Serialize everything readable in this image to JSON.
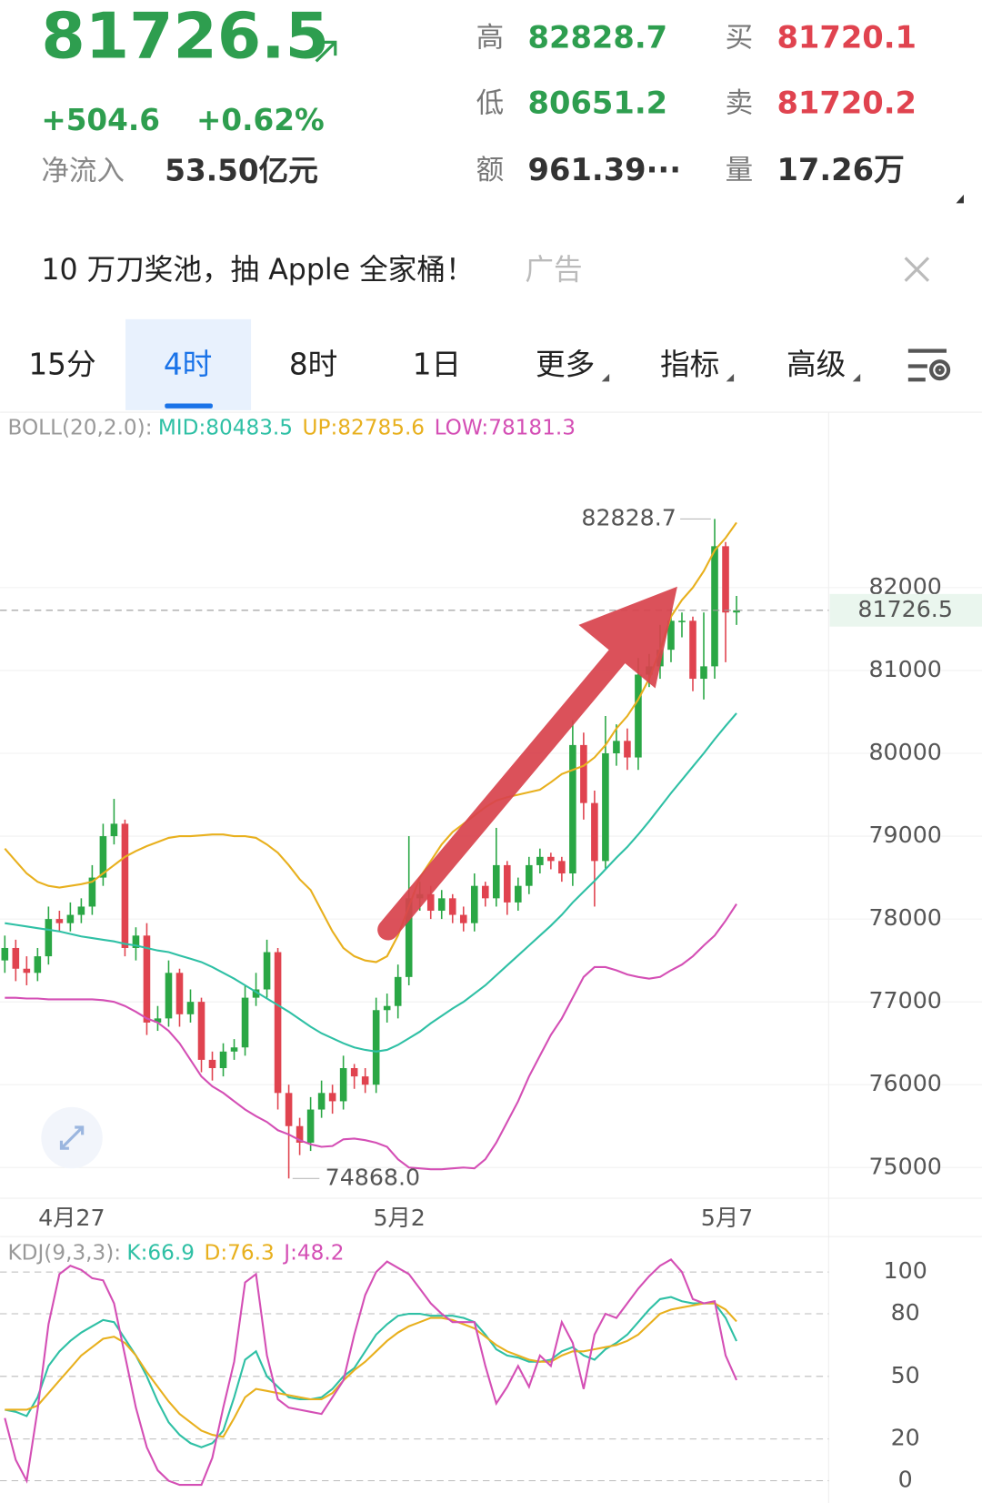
{
  "header": {
    "price": "81726.5",
    "change": "+504.6",
    "change_pct": "+0.62%",
    "inflow_label": "净流入",
    "inflow": "53.50亿元",
    "stats": [
      {
        "label": "高",
        "value": "82828.7",
        "color": "#2e9e4f"
      },
      {
        "label": "低",
        "value": "80651.2",
        "color": "#2e9e4f"
      },
      {
        "label": "额",
        "value": "961.39···",
        "color": "#333333"
      },
      {
        "label": "买",
        "value": "81720.1",
        "color": "#e0434f"
      },
      {
        "label": "卖",
        "value": "81720.2",
        "color": "#e0434f"
      },
      {
        "label": "量",
        "value": "17.26万",
        "color": "#333333"
      }
    ]
  },
  "ad": {
    "text": "10 万刀奖池，抽 Apple 全家桶！",
    "tag": "广告"
  },
  "tabs": [
    "15分",
    "4时",
    "8时",
    "1日",
    "更多",
    "指标",
    "高级"
  ],
  "selected_tab": 1,
  "chart_data": [
    {
      "type": "candlestick",
      "indicator_label": "BOLL(20,2.0):",
      "categories": [
        null,
        null,
        null,
        null,
        null,
        null,
        null,
        "4月27",
        null,
        null,
        null,
        null,
        null,
        null,
        null,
        null,
        null,
        null,
        null,
        null,
        null,
        null,
        null,
        null,
        null,
        null,
        null,
        null,
        null,
        null,
        null,
        null,
        null,
        null,
        null,
        null,
        null,
        "5月2",
        null,
        null,
        null,
        null,
        null,
        null,
        null,
        null,
        null,
        null,
        null,
        null,
        null,
        null,
        null,
        null,
        null,
        null,
        null,
        null,
        null,
        null,
        null,
        null,
        null,
        null,
        null,
        null,
        null,
        "5月7"
      ],
      "open": [
        77500,
        77650,
        77400,
        77350,
        77550,
        78000,
        77950,
        78050,
        78150,
        78500,
        79000,
        79150,
        77650,
        77800,
        76750,
        76800,
        77350,
        76850,
        77000,
        76300,
        76200,
        76400,
        76450,
        77050,
        77150,
        77600,
        75900,
        75500,
        75300,
        75700,
        75900,
        75800,
        76200,
        76100,
        76000,
        76900,
        76950,
        77300,
        78250,
        78300,
        78100,
        78250,
        78050,
        77950,
        78400,
        78250,
        78650,
        78200,
        78400,
        78650,
        78750,
        78700,
        78550,
        80100,
        79400,
        78700,
        80000,
        80150,
        79950,
        80950,
        81050,
        81250,
        81600,
        81600,
        80900,
        81050,
        82500,
        81700
      ],
      "high": [
        77800,
        77750,
        77550,
        77650,
        78150,
        78100,
        78200,
        78250,
        78650,
        79150,
        79450,
        79200,
        77900,
        77950,
        76950,
        77500,
        77400,
        77150,
        77050,
        76400,
        76500,
        76550,
        77200,
        77350,
        77750,
        77650,
        76000,
        75600,
        75850,
        76050,
        76000,
        76350,
        76250,
        76200,
        77050,
        77100,
        77450,
        79000,
        78450,
        78400,
        78350,
        78300,
        78150,
        78550,
        78450,
        79100,
        78700,
        78500,
        78750,
        78850,
        78800,
        78750,
        80400,
        80250,
        79550,
        80450,
        80350,
        80300,
        81150,
        81200,
        81550,
        81750,
        81700,
        81650,
        81700,
        82828.7,
        82550,
        81900
      ],
      "low": [
        77350,
        77250,
        77200,
        77250,
        77450,
        77850,
        77850,
        77950,
        78050,
        78400,
        78900,
        77550,
        77500,
        76600,
        76650,
        76700,
        76700,
        76750,
        76150,
        76050,
        76100,
        76300,
        76350,
        76950,
        77050,
        75700,
        74868,
        75150,
        75200,
        75600,
        75650,
        75700,
        75950,
        75900,
        75900,
        76750,
        76800,
        77200,
        78100,
        78000,
        78000,
        77950,
        77850,
        77850,
        78150,
        78150,
        78050,
        78100,
        78300,
        78550,
        78600,
        78450,
        78400,
        79200,
        78150,
        78600,
        79850,
        79800,
        79800,
        80800,
        80900,
        81100,
        81400,
        80750,
        80650,
        80900,
        81100,
        81550
      ],
      "close": [
        77650,
        77400,
        77350,
        77550,
        78000,
        77950,
        78050,
        78150,
        78500,
        79000,
        79150,
        77650,
        77800,
        76750,
        76800,
        77350,
        76850,
        77000,
        76300,
        76200,
        76400,
        76450,
        77050,
        77150,
        77600,
        75900,
        75500,
        75300,
        75700,
        75900,
        75800,
        76200,
        76100,
        76000,
        76900,
        76950,
        77300,
        78250,
        78300,
        78100,
        78250,
        78050,
        77950,
        78400,
        78250,
        78650,
        78200,
        78400,
        78650,
        78750,
        78700,
        78550,
        80100,
        79400,
        78700,
        80000,
        80150,
        79950,
        80950,
        81050,
        81250,
        81600,
        81600,
        80900,
        81050,
        82500,
        81700,
        81726.5
      ],
      "up_color": "#2aa745",
      "down_color": "#e0434f",
      "series": [
        {
          "name": "MID:80483.5",
          "color": "#2fc0a5",
          "values": [
            77950,
            77930,
            77910,
            77890,
            77870,
            77850,
            77820,
            77790,
            77770,
            77750,
            77730,
            77700,
            77680,
            77650,
            77620,
            77600,
            77560,
            77520,
            77480,
            77420,
            77350,
            77280,
            77200,
            77120,
            77040,
            76960,
            76880,
            76790,
            76700,
            76620,
            76560,
            76500,
            76450,
            76420,
            76400,
            76420,
            76480,
            76560,
            76640,
            76740,
            76830,
            76920,
            77000,
            77100,
            77200,
            77320,
            77440,
            77560,
            77680,
            77800,
            77920,
            78050,
            78200,
            78330,
            78460,
            78600,
            78740,
            78870,
            79020,
            79180,
            79350,
            79520,
            79680,
            79840,
            80000,
            80170,
            80330,
            80483.5
          ]
        },
        {
          "name": "UP:82785.6",
          "color": "#e8b01e",
          "values": [
            78850,
            78700,
            78550,
            78450,
            78400,
            78380,
            78400,
            78420,
            78450,
            78550,
            78650,
            78750,
            78820,
            78880,
            78930,
            78980,
            79000,
            79000,
            79010,
            79020,
            79020,
            79000,
            79000,
            78980,
            78900,
            78800,
            78650,
            78480,
            78350,
            78100,
            77850,
            77650,
            77550,
            77500,
            77480,
            77550,
            77800,
            78150,
            78500,
            78700,
            78900,
            79050,
            79150,
            79250,
            79350,
            79430,
            79470,
            79500,
            79530,
            79560,
            79650,
            79750,
            79800,
            79850,
            79950,
            80100,
            80300,
            80450,
            80650,
            80900,
            81250,
            81650,
            81850,
            82000,
            82200,
            82450,
            82600,
            82785.6
          ]
        },
        {
          "name": "LOW:78181.3",
          "color": "#d44fb5",
          "values": [
            77050,
            77050,
            77040,
            77040,
            77030,
            77030,
            77030,
            77030,
            77030,
            77020,
            77000,
            76950,
            76880,
            76800,
            76750,
            76650,
            76500,
            76300,
            76100,
            75980,
            75900,
            75800,
            75700,
            75620,
            75550,
            75450,
            75400,
            75330,
            75280,
            75250,
            75260,
            75340,
            75350,
            75330,
            75300,
            75250,
            75100,
            75000,
            74990,
            74980,
            74980,
            74990,
            75000,
            74990,
            75100,
            75300,
            75550,
            75800,
            76100,
            76350,
            76600,
            76800,
            77050,
            77300,
            77420,
            77420,
            77380,
            77330,
            77300,
            77280,
            77300,
            77380,
            77450,
            77550,
            77680,
            77800,
            77980,
            78181.3
          ]
        }
      ],
      "ylim": [
        74630,
        84118
      ],
      "yticks": [
        75000,
        76000,
        77000,
        78000,
        79000,
        80000,
        81000,
        82000
      ],
      "grid": true,
      "max_label": 82828.7,
      "min_label": {
        "value": 74868,
        "label": "74868.0"
      },
      "last_price": 81726.5
    },
    {
      "type": "line",
      "indicator_label": "KDJ(9,3,3):",
      "series": [
        {
          "name": "K:66.9",
          "color": "#2fc0a5",
          "values": [
            34,
            33,
            31,
            40,
            55,
            62,
            67,
            71,
            74,
            77,
            76,
            68,
            60,
            50,
            38,
            28,
            22,
            18,
            16,
            18,
            24,
            40,
            58,
            62,
            50,
            45,
            40,
            39,
            39,
            40,
            44,
            50,
            54,
            62,
            70,
            75,
            79,
            80,
            80,
            79,
            79,
            79,
            78,
            76,
            70,
            63,
            60,
            59,
            57,
            57,
            58,
            62,
            64,
            60,
            58,
            63,
            66,
            70,
            76,
            82,
            87,
            88,
            86,
            85,
            85,
            85,
            78,
            66.9
          ]
        },
        {
          "name": "D:76.3",
          "color": "#e8b01e",
          "values": [
            34,
            34,
            34,
            36,
            42,
            48,
            54,
            60,
            64,
            68,
            69,
            66,
            60,
            52,
            45,
            38,
            32,
            28,
            24,
            22,
            21,
            30,
            40,
            44,
            43,
            42,
            41,
            40,
            39,
            39,
            42,
            48,
            53,
            57,
            62,
            67,
            71,
            74,
            76,
            78,
            78,
            77,
            75,
            73,
            69,
            65,
            62,
            60,
            58,
            57,
            57,
            60,
            62,
            62,
            63,
            64,
            65,
            67,
            70,
            75,
            80,
            82,
            83,
            84,
            85,
            85,
            82,
            76.3
          ]
        },
        {
          "name": "J:48.2",
          "color": "#d44fb5",
          "values": [
            30,
            10,
            0,
            34,
            75,
            99,
            103,
            101,
            97,
            96,
            85,
            60,
            35,
            16,
            5,
            0,
            -2,
            -2,
            -2,
            11,
            35,
            57,
            95,
            99,
            60,
            39,
            35,
            34,
            33,
            32,
            40,
            48,
            70,
            89,
            100,
            105,
            102,
            99,
            92,
            85,
            80,
            76,
            76,
            76,
            55,
            37,
            45,
            55,
            45,
            60,
            55,
            76,
            66,
            44,
            70,
            80,
            78,
            85,
            92,
            98,
            103,
            106,
            100,
            87,
            85,
            86,
            60,
            48.2
          ]
        }
      ],
      "ylim": [
        -7,
        117
      ],
      "yticks": [
        100,
        80,
        50,
        20,
        0
      ],
      "grid_dashed": true
    }
  ]
}
